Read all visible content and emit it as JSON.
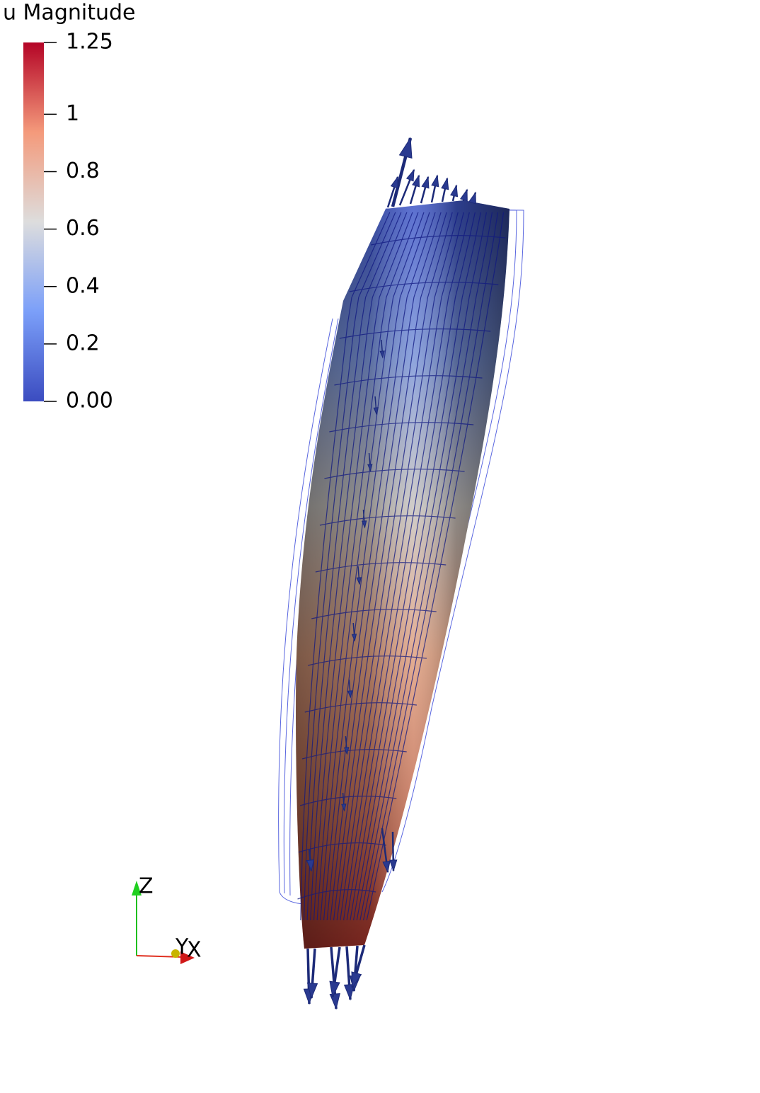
{
  "colorbar": {
    "title": "u Magnitude",
    "range": [
      0,
      1.25
    ],
    "ticks": [
      1.25,
      1,
      0.8,
      0.6,
      0.4,
      0.2,
      {
        "value": 0,
        "label": "0.00"
      }
    ]
  },
  "axes_triad": {
    "z": "Z",
    "y": "Y",
    "x": "X"
  }
}
